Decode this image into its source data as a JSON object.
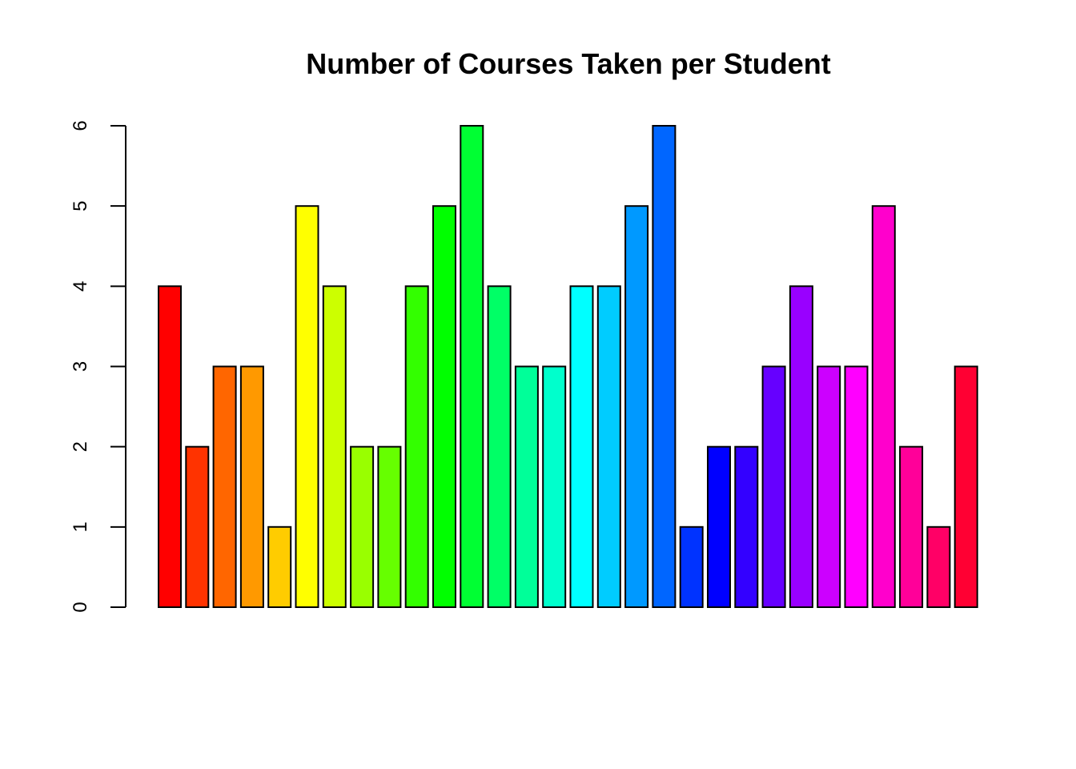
{
  "chart_data": {
    "type": "bar",
    "title": "Number of Courses Taken per Student",
    "xlabel": "",
    "ylabel": "",
    "ylim": [
      0,
      6
    ],
    "yticks": [
      0,
      1,
      2,
      3,
      4,
      5,
      6
    ],
    "grid": false,
    "legend": "none",
    "values": [
      4,
      2,
      3,
      3,
      1,
      5,
      4,
      2,
      2,
      4,
      5,
      6,
      4,
      3,
      3,
      4,
      4,
      5,
      6,
      1,
      2,
      2,
      3,
      4,
      3,
      3,
      5,
      2,
      1,
      3
    ],
    "colors": [
      "#FF0000",
      "#FF3300",
      "#FF6600",
      "#FF9900",
      "#FFCC00",
      "#FFFF00",
      "#CCFF00",
      "#99FF00",
      "#66FF00",
      "#33FF00",
      "#00FF00",
      "#00FF33",
      "#00FF66",
      "#00FF99",
      "#00FFCC",
      "#00FFFF",
      "#00CCFF",
      "#0099FF",
      "#0066FF",
      "#0033FF",
      "#0000FF",
      "#3300FF",
      "#6600FF",
      "#9900FF",
      "#CC00FF",
      "#FF00FF",
      "#FF00CC",
      "#FF0099",
      "#FF0066",
      "#FF0033"
    ]
  }
}
